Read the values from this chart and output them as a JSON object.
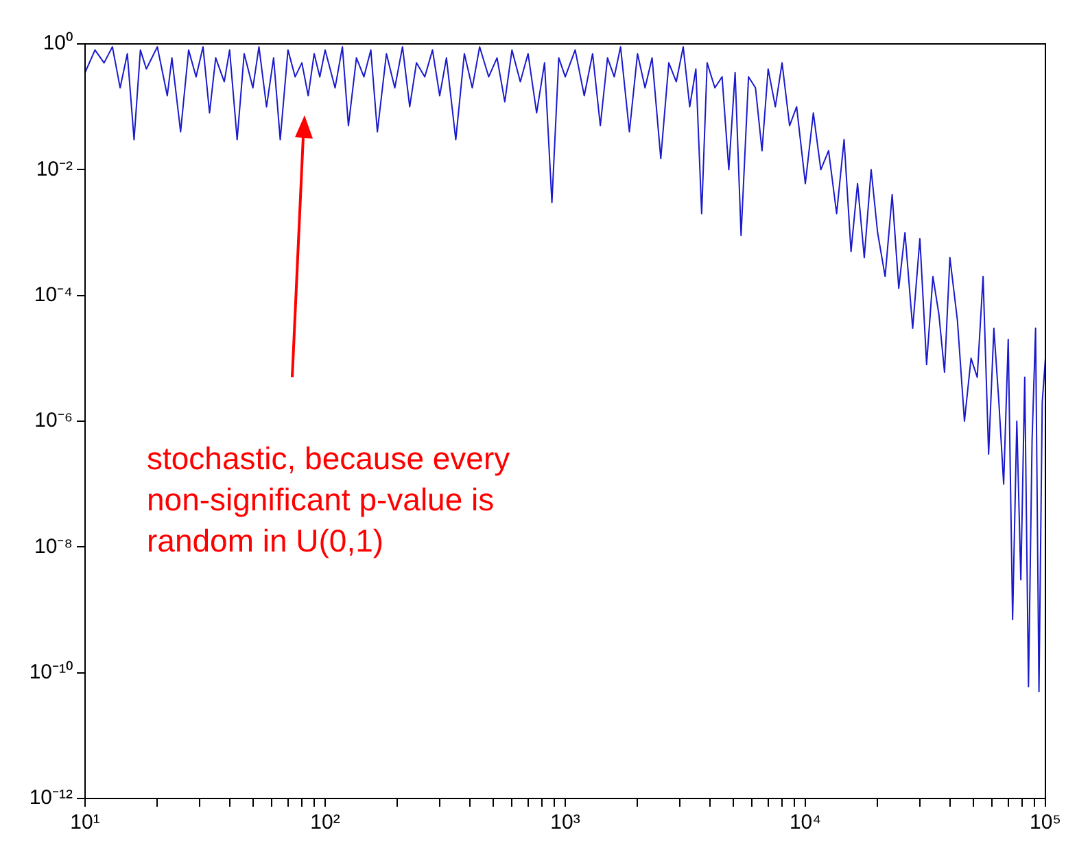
{
  "chart_data": {
    "type": "line",
    "log": "xy",
    "color": "#1a1acc",
    "x": [
      10,
      11,
      12,
      13,
      14,
      15,
      16,
      17,
      18,
      20,
      22,
      23,
      25,
      27,
      29,
      31,
      33,
      35,
      38,
      40,
      43,
      46,
      50,
      53,
      57,
      61,
      65,
      70,
      75,
      80,
      85,
      90,
      95,
      100,
      110,
      118,
      125,
      135,
      145,
      155,
      165,
      180,
      195,
      210,
      225,
      240,
      260,
      280,
      300,
      320,
      350,
      380,
      410,
      440,
      480,
      520,
      560,
      600,
      650,
      700,
      760,
      820,
      880,
      940,
      1000,
      1100,
      1200,
      1300,
      1400,
      1500,
      1600,
      1700,
      1850,
      2000,
      2150,
      2300,
      2500,
      2700,
      2900,
      3100,
      3300,
      3500,
      3700,
      3900,
      4200,
      4500,
      4800,
      5100,
      5400,
      5800,
      6200,
      6600,
      7000,
      7500,
      8000,
      8600,
      9200,
      10000,
      10800,
      11600,
      12500,
      13500,
      14500,
      15500,
      16500,
      17600,
      18800,
      20000,
      21500,
      23000,
      24500,
      26000,
      28000,
      30000,
      32000,
      34000,
      36000,
      38000,
      40000,
      43000,
      46000,
      49000,
      52000,
      55000,
      58000,
      61000,
      64000,
      67000,
      70000,
      73000,
      76000,
      79000,
      82000,
      85000,
      88000,
      91000,
      94000,
      97000,
      100000
    ],
    "values": [
      0.35,
      0.8,
      0.5,
      0.9,
      0.2,
      0.7,
      0.03,
      0.8,
      0.4,
      0.9,
      0.15,
      0.6,
      0.04,
      0.8,
      0.3,
      0.9,
      0.08,
      0.6,
      0.25,
      0.8,
      0.03,
      0.7,
      0.2,
      0.9,
      0.1,
      0.6,
      0.03,
      0.8,
      0.3,
      0.5,
      0.15,
      0.7,
      0.3,
      0.8,
      0.2,
      0.9,
      0.05,
      0.6,
      0.3,
      0.8,
      0.04,
      0.7,
      0.2,
      0.9,
      0.1,
      0.5,
      0.3,
      0.8,
      0.15,
      0.6,
      0.03,
      0.7,
      0.2,
      0.9,
      0.3,
      0.6,
      0.12,
      0.8,
      0.25,
      0.7,
      0.08,
      0.5,
      0.003,
      0.6,
      0.3,
      0.8,
      0.15,
      0.7,
      0.05,
      0.6,
      0.3,
      0.9,
      0.04,
      0.7,
      0.2,
      0.6,
      0.015,
      0.5,
      0.25,
      0.9,
      0.1,
      0.4,
      0.002,
      0.5,
      0.2,
      0.3,
      0.01,
      0.35,
      0.0009,
      0.3,
      0.2,
      0.02,
      0.4,
      0.1,
      0.5,
      0.05,
      0.1,
      0.006,
      0.08,
      0.01,
      0.02,
      0.002,
      0.03,
      0.0005,
      0.006,
      0.0004,
      0.01,
      0.001,
      0.0002,
      0.004,
      0.00013,
      0.001,
      3e-05,
      0.0008,
      8e-06,
      0.0002,
      5e-05,
      6e-06,
      0.0004,
      4e-05,
      1e-06,
      1e-05,
      5e-06,
      0.0002,
      3e-07,
      3e-05,
      2e-06,
      1e-07,
      2e-05,
      7e-10,
      1e-06,
      3e-09,
      5e-06,
      6e-11,
      5e-07,
      3e-05,
      5e-11,
      2e-06,
      1e-05
    ],
    "xlim": [
      10,
      100000
    ],
    "ylim": [
      1e-12,
      1
    ],
    "xticks": [
      {
        "value": 10,
        "label": "10¹"
      },
      {
        "value": 20,
        "label": null
      },
      {
        "value": 30,
        "label": null
      },
      {
        "value": 40,
        "label": null
      },
      {
        "value": 50,
        "label": null
      },
      {
        "value": 60,
        "label": null
      },
      {
        "value": 70,
        "label": null
      },
      {
        "value": 80,
        "label": null
      },
      {
        "value": 90,
        "label": null
      },
      {
        "value": 100,
        "label": "10²"
      },
      {
        "value": 200,
        "label": null
      },
      {
        "value": 300,
        "label": null
      },
      {
        "value": 400,
        "label": null
      },
      {
        "value": 500,
        "label": null
      },
      {
        "value": 600,
        "label": null
      },
      {
        "value": 700,
        "label": null
      },
      {
        "value": 800,
        "label": null
      },
      {
        "value": 900,
        "label": null
      },
      {
        "value": 1000,
        "label": "10³"
      },
      {
        "value": 2000,
        "label": null
      },
      {
        "value": 3000,
        "label": null
      },
      {
        "value": 4000,
        "label": null
      },
      {
        "value": 5000,
        "label": null
      },
      {
        "value": 6000,
        "label": null
      },
      {
        "value": 7000,
        "label": null
      },
      {
        "value": 8000,
        "label": null
      },
      {
        "value": 9000,
        "label": null
      },
      {
        "value": 10000,
        "label": "10⁴"
      },
      {
        "value": 20000,
        "label": null
      },
      {
        "value": 30000,
        "label": null
      },
      {
        "value": 40000,
        "label": null
      },
      {
        "value": 50000,
        "label": null
      },
      {
        "value": 60000,
        "label": null
      },
      {
        "value": 70000,
        "label": null
      },
      {
        "value": 80000,
        "label": null
      },
      {
        "value": 90000,
        "label": null
      },
      {
        "value": 100000,
        "label": "10⁵"
      }
    ],
    "yticks": [
      {
        "value": 1e-12,
        "label": "10⁻¹²"
      },
      {
        "value": 1e-10,
        "label": "10⁻¹⁰"
      },
      {
        "value": 1e-08,
        "label": "10⁻⁸"
      },
      {
        "value": 1e-06,
        "label": "10⁻⁶"
      },
      {
        "value": 0.0001,
        "label": "10⁻⁴"
      },
      {
        "value": 0.01,
        "label": "10⁻²"
      },
      {
        "value": 1,
        "label": "10⁰"
      }
    ],
    "annotations": [
      "stochastic, because every non-significant p-value is random in U(0,1)"
    ]
  }
}
